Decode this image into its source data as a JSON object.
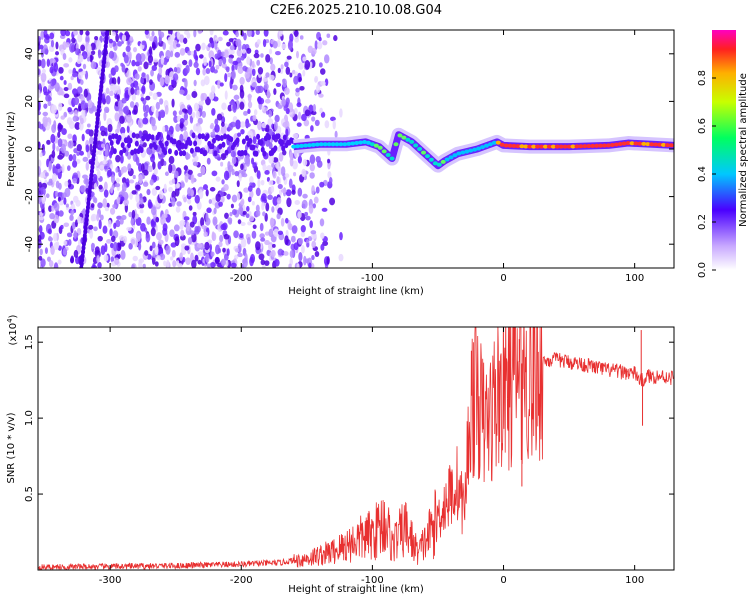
{
  "title": "C2E6.2025.210.10.08.G04",
  "chart_data": [
    {
      "type": "heatmap",
      "xlabel": "Height of straight line (km)",
      "ylabel": "Frequency (Hz)",
      "xlim": [
        -355,
        130
      ],
      "ylim": [
        -50,
        50
      ],
      "x_ticks": [
        -300,
        -200,
        -100,
        0,
        100
      ],
      "y_ticks": [
        -40,
        -20,
        0,
        20,
        40
      ],
      "colorbar": {
        "label": "Normalized spectral amplitude",
        "range": [
          0,
          1
        ],
        "ticks": [
          0.0,
          0.2,
          0.4,
          0.6,
          0.8
        ]
      },
      "trend": {
        "description_points": [
          [
            -160,
            1
          ],
          [
            -140,
            2
          ],
          [
            -120,
            2
          ],
          [
            -105,
            3
          ],
          [
            -95,
            1
          ],
          [
            -85,
            -4
          ],
          [
            -80,
            6
          ],
          [
            -70,
            3
          ],
          [
            -60,
            -2
          ],
          [
            -50,
            -7
          ],
          [
            -45,
            -5
          ],
          [
            -35,
            -2
          ],
          [
            -20,
            0
          ],
          [
            -5,
            3
          ],
          [
            0,
            1.5
          ],
          [
            20,
            1
          ],
          [
            50,
            1
          ],
          [
            80,
            1.5
          ],
          [
            95,
            2.5
          ],
          [
            130,
            1.5
          ]
        ]
      }
    },
    {
      "type": "line",
      "xlabel": "Height of straight line (km)",
      "ylabel": "SNR (10 * v/v)",
      "y_multiplier": "(x10",
      "y_multiplier_exp": "4",
      "xlim": [
        -355,
        130
      ],
      "ylim": [
        0,
        1.6
      ],
      "x_ticks": [
        -300,
        -200,
        -100,
        0,
        100
      ],
      "y_ticks": [
        0.5,
        1.0,
        1.5
      ],
      "series": [
        {
          "color": "#e83030",
          "points": [
            [
              -355,
              0.02
            ],
            [
              -300,
              0.025
            ],
            [
              -250,
              0.03
            ],
            [
              -200,
              0.04
            ],
            [
              -170,
              0.05
            ],
            [
              -150,
              0.08
            ],
            [
              -130,
              0.13
            ],
            [
              -110,
              0.22
            ],
            [
              -100,
              0.25
            ],
            [
              -90,
              0.35
            ],
            [
              -85,
              0.18
            ],
            [
              -75,
              0.3
            ],
            [
              -65,
              0.12
            ],
            [
              -55,
              0.28
            ],
            [
              -45,
              0.45
            ],
            [
              -35,
              0.6
            ],
            [
              -30,
              0.4
            ],
            [
              -25,
              1.15
            ],
            [
              -20,
              1.2
            ],
            [
              -15,
              1.0
            ],
            [
              -10,
              1.05
            ],
            [
              -5,
              1.2
            ],
            [
              0,
              1.25
            ],
            [
              5,
              1.28
            ],
            [
              10,
              1.38
            ],
            [
              20,
              1.33
            ],
            [
              30,
              1.38
            ],
            [
              40,
              1.39
            ],
            [
              60,
              1.36
            ],
            [
              80,
              1.32
            ],
            [
              100,
              1.3
            ],
            [
              105,
              1.25
            ],
            [
              110,
              1.28
            ],
            [
              120,
              1.28
            ],
            [
              130,
              1.27
            ]
          ]
        }
      ]
    }
  ]
}
